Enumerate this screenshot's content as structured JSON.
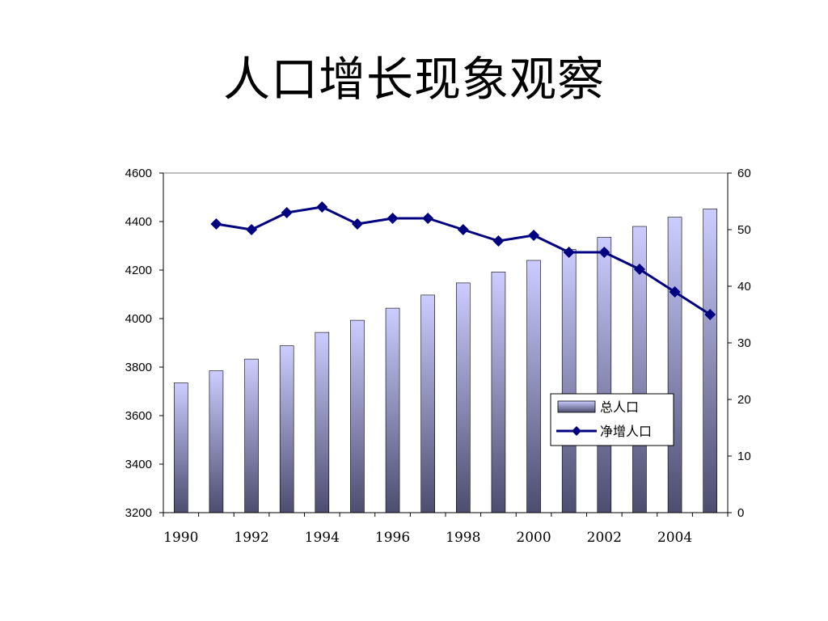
{
  "slide": {
    "title": "人口增长现象观察"
  },
  "chart_data": {
    "type": "bar+line",
    "x": [
      1990,
      1991,
      1992,
      1993,
      1994,
      1995,
      1996,
      1997,
      1998,
      1999,
      2000,
      2001,
      2002,
      2003,
      2004,
      2005
    ],
    "x_tick_labels": [
      "1990",
      "1992",
      "1994",
      "1996",
      "1998",
      "2000",
      "2002",
      "2004"
    ],
    "series": [
      {
        "name": "总人口",
        "type": "bar",
        "axis": "left",
        "values": [
          3735,
          3785,
          3833,
          3888,
          3943,
          3993,
          4043,
          4097,
          4147,
          4192,
          4240,
          4285,
          4335,
          4380,
          4418,
          4452
        ]
      },
      {
        "name": "净增人口",
        "type": "line",
        "axis": "right",
        "marker": "diamond",
        "color": "#000080",
        "values": [
          null,
          51,
          50,
          53,
          54,
          51,
          52,
          52,
          50,
          48,
          49,
          46,
          46,
          43,
          39,
          35
        ]
      }
    ],
    "y_left": {
      "min": 3200,
      "max": 4600,
      "step": 200,
      "ticks": [
        "3200",
        "3400",
        "3600",
        "3800",
        "4000",
        "4200",
        "4400",
        "4600"
      ]
    },
    "y_right": {
      "min": 0,
      "max": 60,
      "step": 10,
      "ticks": [
        "0",
        "10",
        "20",
        "30",
        "40",
        "50",
        "60"
      ]
    },
    "grid": false,
    "legend_position": "lower-right",
    "colors": {
      "bar_top": "#ccccff",
      "bar_bottom": "#4d4d70",
      "line": "#000080"
    }
  }
}
